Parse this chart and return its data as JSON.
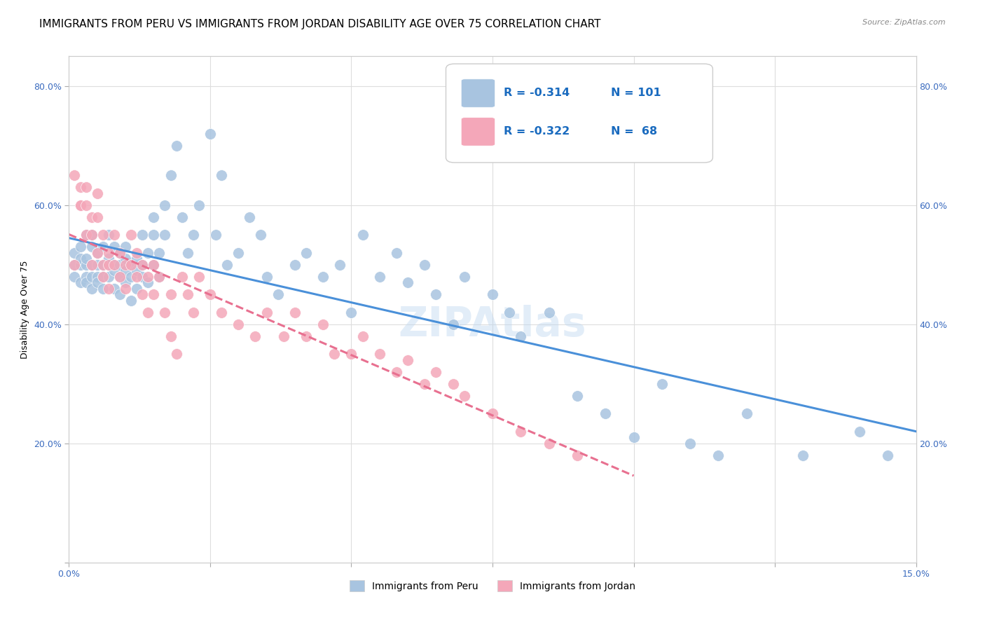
{
  "title": "IMMIGRANTS FROM PERU VS IMMIGRANTS FROM JORDAN DISABILITY AGE OVER 75 CORRELATION CHART",
  "source": "Source: ZipAtlas.com",
  "ylabel": "Disability Age Over 75",
  "xlim": [
    0.0,
    0.15
  ],
  "ylim": [
    0.0,
    0.85
  ],
  "peru_color": "#a8c4e0",
  "jordan_color": "#f4a7b9",
  "peru_R": -0.314,
  "peru_N": 101,
  "jordan_R": -0.322,
  "jordan_N": 68,
  "legend_R_color": "#1a6bbf",
  "peru_line_color": "#4a90d9",
  "jordan_line_color": "#e87090",
  "background_color": "#ffffff",
  "grid_color": "#dddddd",
  "title_fontsize": 11,
  "axis_fontsize": 9,
  "tick_fontsize": 9,
  "peru_scatter_x": [
    0.001,
    0.001,
    0.001,
    0.002,
    0.002,
    0.002,
    0.002,
    0.003,
    0.003,
    0.003,
    0.003,
    0.003,
    0.004,
    0.004,
    0.004,
    0.004,
    0.004,
    0.005,
    0.005,
    0.005,
    0.005,
    0.006,
    0.006,
    0.006,
    0.006,
    0.007,
    0.007,
    0.007,
    0.007,
    0.008,
    0.008,
    0.008,
    0.008,
    0.009,
    0.009,
    0.009,
    0.009,
    0.01,
    0.01,
    0.01,
    0.01,
    0.011,
    0.011,
    0.011,
    0.012,
    0.012,
    0.012,
    0.013,
    0.013,
    0.013,
    0.014,
    0.014,
    0.015,
    0.015,
    0.015,
    0.016,
    0.016,
    0.017,
    0.017,
    0.018,
    0.019,
    0.02,
    0.021,
    0.022,
    0.023,
    0.025,
    0.026,
    0.027,
    0.028,
    0.03,
    0.032,
    0.034,
    0.035,
    0.037,
    0.04,
    0.042,
    0.045,
    0.048,
    0.05,
    0.052,
    0.055,
    0.058,
    0.06,
    0.063,
    0.065,
    0.068,
    0.07,
    0.075,
    0.078,
    0.08,
    0.085,
    0.09,
    0.095,
    0.1,
    0.105,
    0.11,
    0.115,
    0.12,
    0.13,
    0.14,
    0.145
  ],
  "peru_scatter_y": [
    0.5,
    0.48,
    0.52,
    0.5,
    0.47,
    0.53,
    0.51,
    0.5,
    0.48,
    0.51,
    0.55,
    0.47,
    0.5,
    0.48,
    0.53,
    0.46,
    0.55,
    0.5,
    0.48,
    0.52,
    0.47,
    0.5,
    0.48,
    0.53,
    0.46,
    0.5,
    0.48,
    0.51,
    0.55,
    0.49,
    0.5,
    0.53,
    0.46,
    0.48,
    0.5,
    0.52,
    0.45,
    0.49,
    0.51,
    0.47,
    0.53,
    0.48,
    0.5,
    0.44,
    0.49,
    0.51,
    0.46,
    0.55,
    0.48,
    0.5,
    0.52,
    0.47,
    0.55,
    0.58,
    0.5,
    0.48,
    0.52,
    0.6,
    0.55,
    0.65,
    0.7,
    0.58,
    0.52,
    0.55,
    0.6,
    0.72,
    0.55,
    0.65,
    0.5,
    0.52,
    0.58,
    0.55,
    0.48,
    0.45,
    0.5,
    0.52,
    0.48,
    0.5,
    0.42,
    0.55,
    0.48,
    0.52,
    0.47,
    0.5,
    0.45,
    0.4,
    0.48,
    0.45,
    0.42,
    0.38,
    0.42,
    0.28,
    0.25,
    0.21,
    0.3,
    0.2,
    0.18,
    0.25,
    0.18,
    0.22,
    0.18
  ],
  "jordan_scatter_x": [
    0.001,
    0.001,
    0.002,
    0.002,
    0.002,
    0.003,
    0.003,
    0.003,
    0.004,
    0.004,
    0.004,
    0.005,
    0.005,
    0.005,
    0.006,
    0.006,
    0.006,
    0.007,
    0.007,
    0.007,
    0.008,
    0.008,
    0.009,
    0.009,
    0.01,
    0.01,
    0.011,
    0.011,
    0.012,
    0.012,
    0.013,
    0.013,
    0.014,
    0.014,
    0.015,
    0.015,
    0.016,
    0.017,
    0.018,
    0.018,
    0.019,
    0.02,
    0.021,
    0.022,
    0.023,
    0.025,
    0.027,
    0.03,
    0.033,
    0.035,
    0.038,
    0.04,
    0.042,
    0.045,
    0.047,
    0.05,
    0.052,
    0.055,
    0.058,
    0.06,
    0.063,
    0.065,
    0.068,
    0.07,
    0.075,
    0.08,
    0.085,
    0.09
  ],
  "jordan_scatter_y": [
    0.5,
    0.65,
    0.6,
    0.63,
    0.6,
    0.63,
    0.6,
    0.55,
    0.58,
    0.55,
    0.5,
    0.62,
    0.58,
    0.52,
    0.5,
    0.55,
    0.48,
    0.5,
    0.52,
    0.46,
    0.55,
    0.5,
    0.52,
    0.48,
    0.5,
    0.46,
    0.55,
    0.5,
    0.48,
    0.52,
    0.5,
    0.45,
    0.48,
    0.42,
    0.5,
    0.45,
    0.48,
    0.42,
    0.38,
    0.45,
    0.35,
    0.48,
    0.45,
    0.42,
    0.48,
    0.45,
    0.42,
    0.4,
    0.38,
    0.42,
    0.38,
    0.42,
    0.38,
    0.4,
    0.35,
    0.35,
    0.38,
    0.35,
    0.32,
    0.34,
    0.3,
    0.32,
    0.3,
    0.28,
    0.25,
    0.22,
    0.2,
    0.18
  ]
}
